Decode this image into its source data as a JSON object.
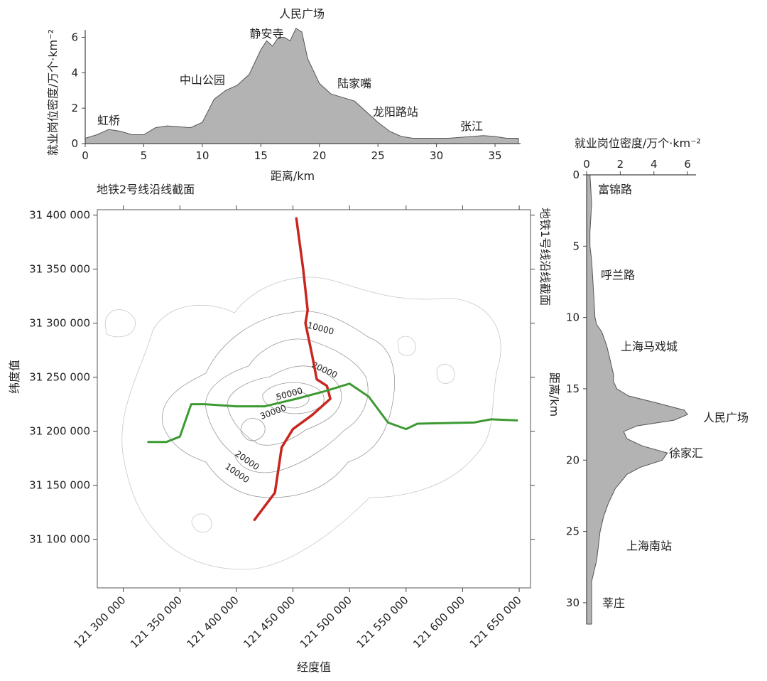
{
  "chart_data": [
    {
      "type": "area",
      "title": "地铁2号线沿线截面",
      "xlabel": "距离/km",
      "ylabel": "就业岗位密度/万个·km⁻²",
      "xlim": [
        0,
        37
      ],
      "ylim": [
        0,
        6.5
      ],
      "xticks": [
        "0",
        "5",
        "10",
        "15",
        "20",
        "25",
        "30",
        "35"
      ],
      "yticks": [
        "0",
        "2",
        "4",
        "6"
      ],
      "x": [
        0,
        1,
        2,
        3,
        4,
        5,
        6,
        7,
        8,
        9,
        10,
        11,
        12,
        13,
        14,
        15,
        15.5,
        16,
        16.5,
        17,
        17.5,
        18,
        18.5,
        19,
        20,
        21,
        22,
        23,
        24,
        25,
        26,
        27,
        28,
        29,
        30,
        31,
        32,
        33,
        34,
        35,
        36,
        37
      ],
      "values": [
        0.3,
        0.5,
        0.8,
        0.7,
        0.5,
        0.5,
        0.9,
        1.0,
        0.95,
        0.9,
        1.2,
        2.5,
        3.0,
        3.3,
        3.9,
        5.3,
        5.8,
        5.5,
        6.0,
        6.0,
        5.8,
        6.5,
        6.3,
        4.8,
        3.4,
        2.8,
        2.6,
        2.4,
        1.8,
        1.2,
        0.7,
        0.4,
        0.3,
        0.3,
        0.3,
        0.3,
        0.35,
        0.4,
        0.45,
        0.4,
        0.3,
        0.3
      ],
      "annotations": [
        {
          "label": "虹桥",
          "x": 2
        },
        {
          "label": "中山公园",
          "x": 10
        },
        {
          "label": "静安寺",
          "x": 15.5
        },
        {
          "label": "人民广场",
          "x": 18.5
        },
        {
          "label": "陆家嘴",
          "x": 23
        },
        {
          "label": "龙阳路站",
          "x": 26.5
        },
        {
          "label": "张江",
          "x": 33
        }
      ]
    },
    {
      "type": "area",
      "orientation": "vertical",
      "title": "地铁1号线沿线截面",
      "xlabel": "就业岗位密度/万个·km⁻²",
      "ylabel": "距离/km",
      "xlim": [
        0,
        6.5
      ],
      "ylim": [
        0,
        31.5
      ],
      "xticks": [
        "0",
        "2",
        "4",
        "6"
      ],
      "yticks": [
        "0",
        "5",
        "10",
        "15",
        "20",
        "25",
        "30"
      ],
      "distance": [
        0,
        2,
        4,
        5,
        6,
        8,
        10,
        10.5,
        11,
        12,
        13,
        14,
        14.5,
        15,
        15.5,
        16,
        16.5,
        16.8,
        17.2,
        17.6,
        18,
        18.5,
        19,
        19.5,
        20,
        20.5,
        21,
        22,
        23,
        24,
        25,
        26,
        27,
        28,
        28.5,
        29,
        30,
        31,
        31.5
      ],
      "values": [
        0.2,
        0.3,
        0.2,
        0.2,
        0.3,
        0.4,
        0.5,
        0.6,
        0.9,
        1.2,
        1.4,
        1.6,
        1.6,
        1.8,
        2.5,
        4.2,
        5.8,
        6.0,
        5.2,
        3.0,
        2.2,
        2.4,
        3.3,
        4.8,
        4.5,
        3.2,
        2.4,
        1.7,
        1.3,
        1.0,
        0.8,
        0.7,
        0.6,
        0.4,
        0.3,
        0.3,
        0.3,
        0.3,
        0.3
      ],
      "annotations": [
        {
          "label": "富锦路",
          "y": 1
        },
        {
          "label": "呼兰路",
          "y": 7
        },
        {
          "label": "上海马戏城",
          "y": 12
        },
        {
          "label": "人民广场",
          "y": 17
        },
        {
          "label": "徐家汇",
          "y": 19.5
        },
        {
          "label": "上海南站",
          "y": 26
        },
        {
          "label": "莘庄",
          "y": 30
        }
      ]
    },
    {
      "type": "contour",
      "xlabel": "经度值",
      "ylabel": "纬度值",
      "xlim": [
        121277000,
        121660000
      ],
      "ylim": [
        31055000,
        31405000
      ],
      "xticks": [
        "121 300 000",
        "121 350 000",
        "121 400 000",
        "121 450 000",
        "121 500 000",
        "121 550 000",
        "121 600 000",
        "121 650 000"
      ],
      "yticks": [
        "31 100 000",
        "31 150 000",
        "31 200 000",
        "31 250 000",
        "31 300 000",
        "31 350 000",
        "31 400 000"
      ],
      "contour_labels": [
        "10000",
        "20000",
        "50000",
        "30000",
        "20000",
        "10000"
      ],
      "lines": [
        {
          "name": "地铁1号线",
          "color": "#c8261f",
          "points": [
            [
              121453000,
              31397000
            ],
            [
              121459000,
              31350000
            ],
            [
              121463000,
              31312000
            ],
            [
              121461000,
              31300000
            ],
            [
              121467000,
              31270000
            ],
            [
              121471000,
              31248000
            ],
            [
              121480000,
              31242000
            ],
            [
              121483000,
              31230000
            ],
            [
              121467000,
              31215000
            ],
            [
              121450000,
              31202000
            ],
            [
              121440000,
              31185000
            ],
            [
              121434000,
              31143000
            ],
            [
              121416000,
              31118000
            ]
          ]
        },
        {
          "name": "地铁2号线",
          "color": "#3d9a33",
          "points": [
            [
              121322000,
              31190000
            ],
            [
              121338000,
              31190000
            ],
            [
              121350000,
              31195000
            ],
            [
              121360000,
              31225000
            ],
            [
              121372000,
              31225000
            ],
            [
              121400000,
              31223000
            ],
            [
              121425000,
              31223000
            ],
            [
              121453000,
              31230000
            ],
            [
              121478000,
              31237000
            ],
            [
              121500000,
              31244000
            ],
            [
              121517000,
              31232000
            ],
            [
              121534000,
              31208000
            ],
            [
              121550000,
              31202000
            ],
            [
              121560000,
              31207000
            ],
            [
              121610000,
              31208000
            ],
            [
              121625000,
              31211000
            ],
            [
              121648000,
              31210000
            ]
          ]
        }
      ]
    }
  ]
}
